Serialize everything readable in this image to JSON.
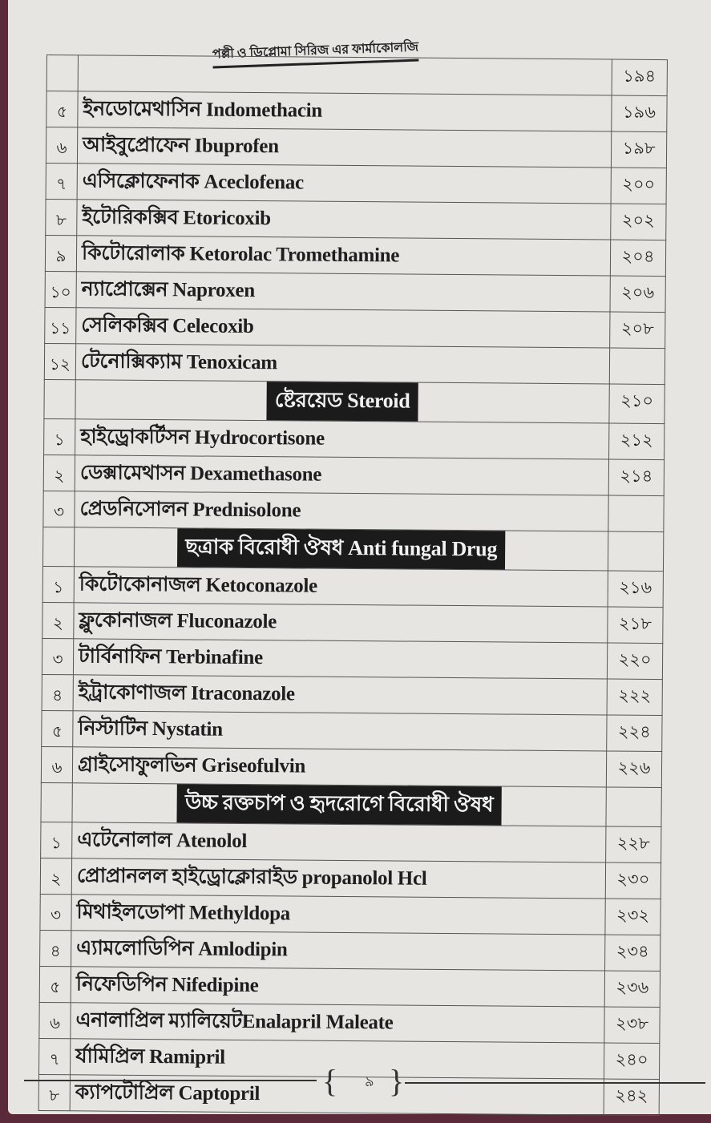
{
  "header": {
    "title": "পল্লী ও ডিপ্লোমা সিরিজ এর ফার্মাকোলজি"
  },
  "rows": [
    {
      "type": "item",
      "num": "",
      "name": "",
      "page": "১৯৪"
    },
    {
      "type": "item",
      "num": "৫",
      "name": "ইনডোমেথাসিন Indomethacin",
      "page": "১৯৬"
    },
    {
      "type": "item",
      "num": "৬",
      "name": "আইবুপ্রোফেন Ibuprofen",
      "page": "১৯৮"
    },
    {
      "type": "item",
      "num": "৭",
      "name": "এসিক্লোফেনাক Aceclofenac",
      "page": "২০০"
    },
    {
      "type": "item",
      "num": "৮",
      "name": "ইটোরিকক্সিব Etoricoxib",
      "page": "২০২"
    },
    {
      "type": "item",
      "num": "৯",
      "name": "কিটোরোলাক Ketorolac Tromethamine",
      "page": "২০৪"
    },
    {
      "type": "item",
      "num": "১০",
      "name": "ন্যাপ্রোক্সেন Naproxen",
      "page": "২০৬"
    },
    {
      "type": "item",
      "num": "১১",
      "name": "সেলিকক্সিব Celecoxib",
      "page": "২০৮"
    },
    {
      "type": "item",
      "num": "১২",
      "name": "টেনোক্সিক্যাম Tenoxicam",
      "page": ""
    },
    {
      "type": "section",
      "name": "ষ্টেরয়েড Steroid",
      "page": "২১০"
    },
    {
      "type": "item",
      "num": "১",
      "name": "হাইড্রোকর্টিসন Hydrocortisone",
      "page": "২১২"
    },
    {
      "type": "item",
      "num": "২",
      "name": "ডেক্সামেথাসন Dexamethasone",
      "page": "২১৪"
    },
    {
      "type": "item",
      "num": "৩",
      "name": "প্রেডনিসোলন Prednisolone",
      "page": ""
    },
    {
      "type": "section",
      "name": "ছত্রাক বিরোধী ঔষধ Anti fungal Drug",
      "page": ""
    },
    {
      "type": "item",
      "num": "১",
      "name": "কিটোকোনাজল Ketoconazole",
      "page": "২১৬"
    },
    {
      "type": "item",
      "num": "২",
      "name": "ফ্লুকোনাজল Fluconazole",
      "page": "২১৮"
    },
    {
      "type": "item",
      "num": "৩",
      "name": "টার্বিনাফিন Terbinafine",
      "page": "২২০"
    },
    {
      "type": "item",
      "num": "৪",
      "name": "ইট্রাকোণাজল Itraconazole",
      "page": "২২২"
    },
    {
      "type": "item",
      "num": "৫",
      "name": "নিস্টাটিন Nystatin",
      "page": "২২৪"
    },
    {
      "type": "item",
      "num": "৬",
      "name": "গ্রাইসোফুলভিন Griseofulvin",
      "page": "২২৬"
    },
    {
      "type": "section",
      "name": "উচ্চ রক্তচাপ ও হৃদরোগে বিরোধী ঔষধ",
      "page": ""
    },
    {
      "type": "item",
      "num": "১",
      "name": "এটেনোলাল Atenolol",
      "page": "২২৮"
    },
    {
      "type": "item",
      "num": "২",
      "name": "প্রোপ্রানলল হাইড্রোক্লোরাইড propanolol Hcl",
      "page": "২৩০"
    },
    {
      "type": "item",
      "num": "৩",
      "name": "মিথাইলডোপা Methyldopa",
      "page": "২৩২"
    },
    {
      "type": "item",
      "num": "৪",
      "name": "এ্যামলোডিপিন Amlodipin",
      "page": "২৩৪"
    },
    {
      "type": "item",
      "num": "৫",
      "name": "নিফেডিপিন Nifedipine",
      "page": "২৩৬"
    },
    {
      "type": "item",
      "num": "৬",
      "name": "এনালাপ্রিল ম্যালিয়েটEnalapril Maleate",
      "page": "২৩৮"
    },
    {
      "type": "item",
      "num": "৭",
      "name": "র্যামিপ্রিল Ramipril",
      "page": "২৪০"
    },
    {
      "type": "item",
      "num": "৮",
      "name": "ক্যাপটোপ্রিল Captopril",
      "page": "২৪২"
    }
  ],
  "footer": {
    "page_number": "৯"
  }
}
